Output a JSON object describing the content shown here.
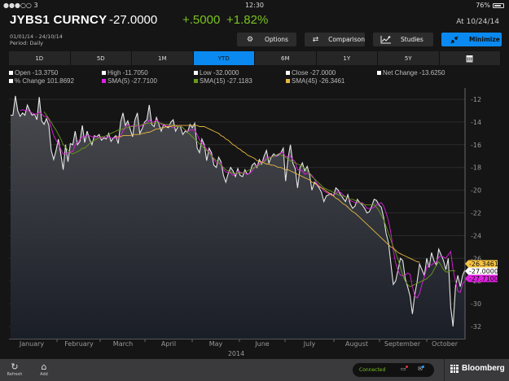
{
  "status_bar": {
    "carrier": "●●●○○ 3",
    "time": "12:30",
    "battery": "76%"
  },
  "header": {
    "ticker": "JYBS1 CURNCY",
    "price": "-27.0000",
    "change": "+.5000",
    "change_pct": "+1.82%",
    "as_of": "At 10/24/14",
    "date_range": "01/01/14 - 24/10/14",
    "period": "Period: Daily"
  },
  "toolbar": {
    "options": "Options",
    "comparison": "Comparison",
    "studies": "Studies",
    "minimize": "Minimize"
  },
  "tabs": [
    {
      "label": "1D",
      "active": false
    },
    {
      "label": "5D",
      "active": false
    },
    {
      "label": "1M",
      "active": false
    },
    {
      "label": "YTD",
      "active": true
    },
    {
      "label": "6M",
      "active": false
    },
    {
      "label": "1Y",
      "active": false
    },
    {
      "label": "5Y",
      "active": false
    },
    {
      "label": "calendar-icon",
      "active": false
    }
  ],
  "legend": [
    {
      "text": "Open -13.3750",
      "color": "#ffffff"
    },
    {
      "text": "High -11.7050",
      "color": "#ffffff"
    },
    {
      "text": "Low -32.0000",
      "color": "#ffffff"
    },
    {
      "text": "Close -27.0000",
      "color": "#ffffff"
    },
    {
      "text": "Net Change -13.6250",
      "color": "#ffffff"
    },
    {
      "text": "% Change 101.8692",
      "color": "#ffffff"
    },
    {
      "text": "SMA(5) -27.7100",
      "color": "#e020e0"
    },
    {
      "text": "SMA(15) -27.1183",
      "color": "#6a9a1a"
    },
    {
      "text": "SMA(45) -26.3461",
      "color": "#e8b840"
    }
  ],
  "chart_data": {
    "type": "line",
    "title": "JYBS1 CURNCY",
    "xlabel": "2014",
    "ylabel": "",
    "ylim": [
      -33,
      -11
    ],
    "y_ticks": [
      -12,
      -14,
      -16,
      -18,
      -20,
      -22,
      -24,
      -26,
      -28,
      -30,
      -32
    ],
    "x_ticks": [
      "January",
      "February",
      "March",
      "April",
      "May",
      "June",
      "July",
      "August",
      "September",
      "October"
    ],
    "grid": true,
    "price_tags": [
      {
        "label": "-26.3461",
        "value": -26.3461,
        "bg": "#f5c242",
        "fg": "#111111"
      },
      {
        "label": "-27.0000",
        "value": -27.0,
        "bg": "#ffffff",
        "fg": "#111111"
      },
      {
        "label": "-27.7100",
        "value": -27.71,
        "bg": "#e020e0",
        "fg": "#111111"
      }
    ],
    "series": [
      {
        "name": "Close",
        "color": "#e6e6e6",
        "values": [
          -13.4,
          -13.4,
          -11.7,
          -13.0,
          -13.5,
          -13.2,
          -13.4,
          -12.5,
          -13.0,
          -13.4,
          -13.3,
          -13.8,
          -11.8,
          -13.9,
          -14.2,
          -13.7,
          -14.3,
          -16.5,
          -17.3,
          -16.5,
          -15.5,
          -16.8,
          -18.2,
          -16.0,
          -17.5,
          -15.9,
          -16.0,
          -14.8,
          -16.0,
          -15.7,
          -14.3,
          -15.8,
          -14.8,
          -15.5,
          -16.0,
          -15.2,
          -15.3,
          -15.1,
          -15.6,
          -15.4,
          -15.5,
          -15.0,
          -15.7,
          -15.4,
          -15.2,
          -15.9,
          -14.0,
          -13.2,
          -14.3,
          -13.9,
          -14.6,
          -15.3,
          -13.8,
          -13.2,
          -15.0,
          -14.6,
          -14.0,
          -13.8,
          -12.5,
          -14.2,
          -14.4,
          -13.6,
          -14.2,
          -14.8,
          -14.2,
          -14.4,
          -14.5,
          -14.0,
          -13.8,
          -14.8,
          -14.4,
          -14.4,
          -15.1,
          -14.8,
          -14.9,
          -14.2,
          -14.5,
          -14.1,
          -16.3,
          -16.7,
          -15.5,
          -16.0,
          -17.4,
          -16.3,
          -16.7,
          -17.8,
          -18.0,
          -17.1,
          -17.5,
          -18.7,
          -19.3,
          -18.5,
          -18.0,
          -18.3,
          -18.8,
          -18.1,
          -18.7,
          -18.8,
          -18.2,
          -18.6,
          -18.5,
          -17.8,
          -17.6,
          -18.0,
          -17.3,
          -17.7,
          -17.0,
          -16.5,
          -17.6,
          -17.1,
          -16.8,
          -17.0,
          -16.9,
          -16.7,
          -16.3,
          -19.2,
          -17.2,
          -16.0,
          -17.6,
          -18.1,
          -19.8,
          -18.0,
          -17.6,
          -18.3,
          -17.9,
          -18.6,
          -20.0,
          -19.3,
          -19.5,
          -19.8,
          -20.2,
          -21.0,
          -20.5,
          -20.4,
          -20.3,
          -20.5,
          -19.8,
          -20.0,
          -20.4,
          -20.7,
          -21.0,
          -20.4,
          -21.2,
          -21.6,
          -21.4,
          -20.8,
          -21.1,
          -21.3,
          -21.6,
          -22.0,
          -21.9,
          -21.4,
          -20.8,
          -20.9,
          -21.3,
          -21.5,
          -22.4,
          -23.8,
          -24.6,
          -26.5,
          -28.3,
          -28.0,
          -27.0,
          -26.0,
          -26.2,
          -27.8,
          -28.5,
          -29.3,
          -30.9,
          -29.2,
          -28.0,
          -26.5,
          -27.0,
          -27.5,
          -26.0,
          -26.8,
          -25.5,
          -26.2,
          -26.6,
          -25.2,
          -25.7,
          -26.2,
          -27.0,
          -26.0,
          -30.3,
          -32.0,
          -28.5,
          -27.5,
          -28.5,
          -27.5,
          -27.0
        ]
      },
      {
        "name": "SMA(5)",
        "color": "#e020e0",
        "values": [
          null,
          null,
          null,
          null,
          -13.0,
          -12.9,
          -13.0,
          -12.9,
          -13.1,
          -13.2,
          -13.3,
          -13.3,
          -13.1,
          -13.3,
          -13.5,
          -13.5,
          -13.8,
          -14.5,
          -15.2,
          -15.6,
          -15.9,
          -16.4,
          -16.8,
          -16.8,
          -16.7,
          -16.6,
          -16.6,
          -16.0,
          -15.8,
          -15.5,
          -15.3,
          -15.3,
          -15.2,
          -15.2,
          -15.3,
          -15.3,
          -15.3,
          -15.4,
          -15.4,
          -15.3,
          -15.4,
          -15.3,
          -15.4,
          -15.4,
          -15.4,
          -15.4,
          -15.2,
          -14.8,
          -14.5,
          -14.2,
          -14.4,
          -14.3,
          -14.4,
          -14.3,
          -14.4,
          -14.3,
          -14.1,
          -14.1,
          -13.8,
          -14.0,
          -14.0,
          -13.8,
          -14.0,
          -14.2,
          -14.3,
          -14.3,
          -14.3,
          -14.4,
          -14.5,
          -14.4,
          -14.3,
          -14.3,
          -14.5,
          -14.7,
          -14.8,
          -14.7,
          -14.7,
          -14.7,
          -15.1,
          -15.6,
          -15.8,
          -16.1,
          -16.4,
          -16.6,
          -16.9,
          -17.3,
          -17.6,
          -17.6,
          -17.6,
          -18.2,
          -18.4,
          -18.4,
          -18.5,
          -18.7,
          -18.6,
          -18.3,
          -18.4,
          -18.5,
          -18.5,
          -18.6,
          -18.5,
          -18.3,
          -18.0,
          -17.8,
          -17.7,
          -17.5,
          -17.4,
          -17.1,
          -17.1,
          -17.1,
          -17.0,
          -17.0,
          -16.8,
          -16.7,
          -16.7,
          -17.1,
          -17.0,
          -17.0,
          -17.3,
          -17.5,
          -18.2,
          -18.2,
          -18.3,
          -18.6,
          -18.5,
          -18.5,
          -18.7,
          -19.0,
          -19.4,
          -19.6,
          -19.8,
          -20.1,
          -20.2,
          -20.3,
          -20.4,
          -20.4,
          -20.3,
          -20.1,
          -20.2,
          -20.4,
          -20.6,
          -20.7,
          -20.9,
          -21.0,
          -21.1,
          -21.1,
          -21.1,
          -21.1,
          -21.3,
          -21.6,
          -21.6,
          -21.6,
          -21.5,
          -21.3,
          -21.2,
          -21.1,
          -21.4,
          -22.0,
          -22.7,
          -23.8,
          -25.3,
          -26.4,
          -27.1,
          -27.5,
          -27.5,
          -27.5,
          -27.3,
          -27.4,
          -28.5,
          -29.3,
          -29.5,
          -29.1,
          -28.3,
          -27.6,
          -26.8,
          -26.6,
          -26.6,
          -26.4,
          -26.3,
          -25.9,
          -25.8,
          -25.9,
          -26.0,
          -25.7,
          -25.4,
          -27.0,
          -28.0,
          -28.9,
          -29.0,
          -28.2,
          -28.0,
          -27.71
        ]
      },
      {
        "name": "SMA(15)",
        "color": "#6a9a1a",
        "values": [
          null,
          null,
          null,
          null,
          null,
          null,
          null,
          null,
          null,
          null,
          null,
          null,
          null,
          null,
          -13.1,
          -13.4,
          -13.7,
          -14.0,
          -14.4,
          -14.7,
          -15.1,
          -15.5,
          -16.0,
          -16.2,
          -16.5,
          -16.7,
          -16.8,
          -16.7,
          -16.6,
          -16.5,
          -16.3,
          -16.3,
          -16.1,
          -15.9,
          -15.7,
          -15.6,
          -15.5,
          -15.4,
          -15.3,
          -15.3,
          -15.2,
          -15.1,
          -15.0,
          -14.9,
          -14.8,
          -14.7,
          -14.7,
          -14.6,
          -14.5,
          -14.5,
          -14.4,
          -14.4,
          -14.3,
          -14.3,
          -14.3,
          -14.2,
          -14.2,
          -14.1,
          -14.1,
          -14.1,
          -14.1,
          -14.0,
          -14.1,
          -14.1,
          -14.2,
          -14.2,
          -14.2,
          -14.3,
          -14.3,
          -14.4,
          -14.4,
          -14.4,
          -14.5,
          -14.7,
          -14.9,
          -15.1,
          -15.3,
          -15.5,
          -15.7,
          -15.9,
          -16.1,
          -16.3,
          -16.5,
          -16.7,
          -17.0,
          -17.2,
          -17.4,
          -17.6,
          -17.8,
          -18.0,
          -18.2,
          -18.3,
          -18.4,
          -18.5,
          -18.5,
          -18.5,
          -18.5,
          -18.5,
          -18.4,
          -18.3,
          -18.2,
          -18.1,
          -18.0,
          -17.9,
          -17.8,
          -17.6,
          -17.5,
          -17.3,
          -17.2,
          -17.1,
          -17.0,
          -16.9,
          -16.8,
          -16.9,
          -17.0,
          -17.1,
          -17.3,
          -17.4,
          -17.5,
          -17.6,
          -17.7,
          -17.8,
          -17.9,
          -18.1,
          -18.3,
          -18.5,
          -18.8,
          -19.0,
          -19.2,
          -19.4,
          -19.6,
          -19.8,
          -19.9,
          -20.0,
          -20.1,
          -20.2,
          -20.3,
          -20.4,
          -20.5,
          -20.5,
          -20.6,
          -20.7,
          -20.8,
          -20.8,
          -20.9,
          -21.0,
          -21.1,
          -21.2,
          -21.3,
          -21.3,
          -21.3,
          -21.3,
          -21.3,
          -21.5,
          -21.8,
          -22.2,
          -22.6,
          -23.2,
          -23.8,
          -24.4,
          -25.0,
          -25.5,
          -26.1,
          -26.8,
          -27.5,
          -28.0,
          -28.3,
          -28.5,
          -28.4,
          -28.3,
          -28.2,
          -28.1,
          -28.0,
          -27.9,
          -27.8,
          -27.6,
          -27.4,
          -27.0,
          -26.6,
          -26.3,
          -26.6,
          -27.0,
          -27.2,
          -27.2,
          -27.1,
          -27.1,
          -27.1183
        ]
      },
      {
        "name": "SMA(45)",
        "color": "#e8b840",
        "values": [
          null,
          null,
          null,
          null,
          null,
          null,
          null,
          null,
          null,
          null,
          null,
          null,
          null,
          null,
          null,
          null,
          null,
          null,
          null,
          null,
          null,
          null,
          null,
          null,
          null,
          null,
          null,
          null,
          null,
          null,
          null,
          null,
          null,
          null,
          null,
          null,
          null,
          null,
          null,
          null,
          null,
          null,
          null,
          null,
          -15.3,
          -15.3,
          -15.3,
          -15.2,
          -15.2,
          -15.2,
          -15.2,
          -15.1,
          -15.1,
          -15.1,
          -15.1,
          -15.0,
          -15.0,
          -14.9,
          -14.9,
          -14.8,
          -14.7,
          -14.6,
          -14.6,
          -14.5,
          -14.5,
          -14.4,
          -14.4,
          -14.4,
          -14.3,
          -14.3,
          -14.3,
          -14.3,
          -14.3,
          -14.3,
          -14.3,
          -14.3,
          -14.3,
          -14.3,
          -14.3,
          -14.4,
          -14.4,
          -14.4,
          -14.5,
          -14.6,
          -14.7,
          -14.8,
          -14.9,
          -15.0,
          -15.2,
          -15.3,
          -15.5,
          -15.6,
          -15.8,
          -16.0,
          -16.1,
          -16.3,
          -16.4,
          -16.6,
          -16.7,
          -16.9,
          -17.0,
          -17.1,
          -17.2,
          -17.4,
          -17.5,
          -17.5,
          -17.6,
          -17.7,
          -17.7,
          -17.8,
          -17.8,
          -17.9,
          -18.0,
          -18.0,
          -18.1,
          -18.2,
          -18.2,
          -18.3,
          -18.4,
          -18.5,
          -18.6,
          -18.7,
          -18.8,
          -18.9,
          -19.0,
          -19.1,
          -19.3,
          -19.4,
          -19.5,
          -19.7,
          -19.8,
          -19.9,
          -20.1,
          -20.2,
          -20.4,
          -20.5,
          -20.7,
          -20.8,
          -21.0,
          -21.2,
          -21.3,
          -21.5,
          -21.7,
          -21.9,
          -22.0,
          -22.2,
          -22.4,
          -22.6,
          -22.8,
          -23.0,
          -23.2,
          -23.4,
          -23.6,
          -23.8,
          -24.0,
          -24.2,
          -24.4,
          -24.6,
          -24.8,
          -25.0,
          -25.1,
          -25.3,
          -25.5,
          -25.6,
          -25.7,
          -25.8,
          -25.9,
          -26.0,
          -26.1,
          -26.2,
          -26.3,
          -26.3461
        ]
      }
    ]
  },
  "footer": {
    "refresh": "Refresh",
    "add": "Add",
    "connection": "Connected",
    "brand": "Bloomberg"
  }
}
